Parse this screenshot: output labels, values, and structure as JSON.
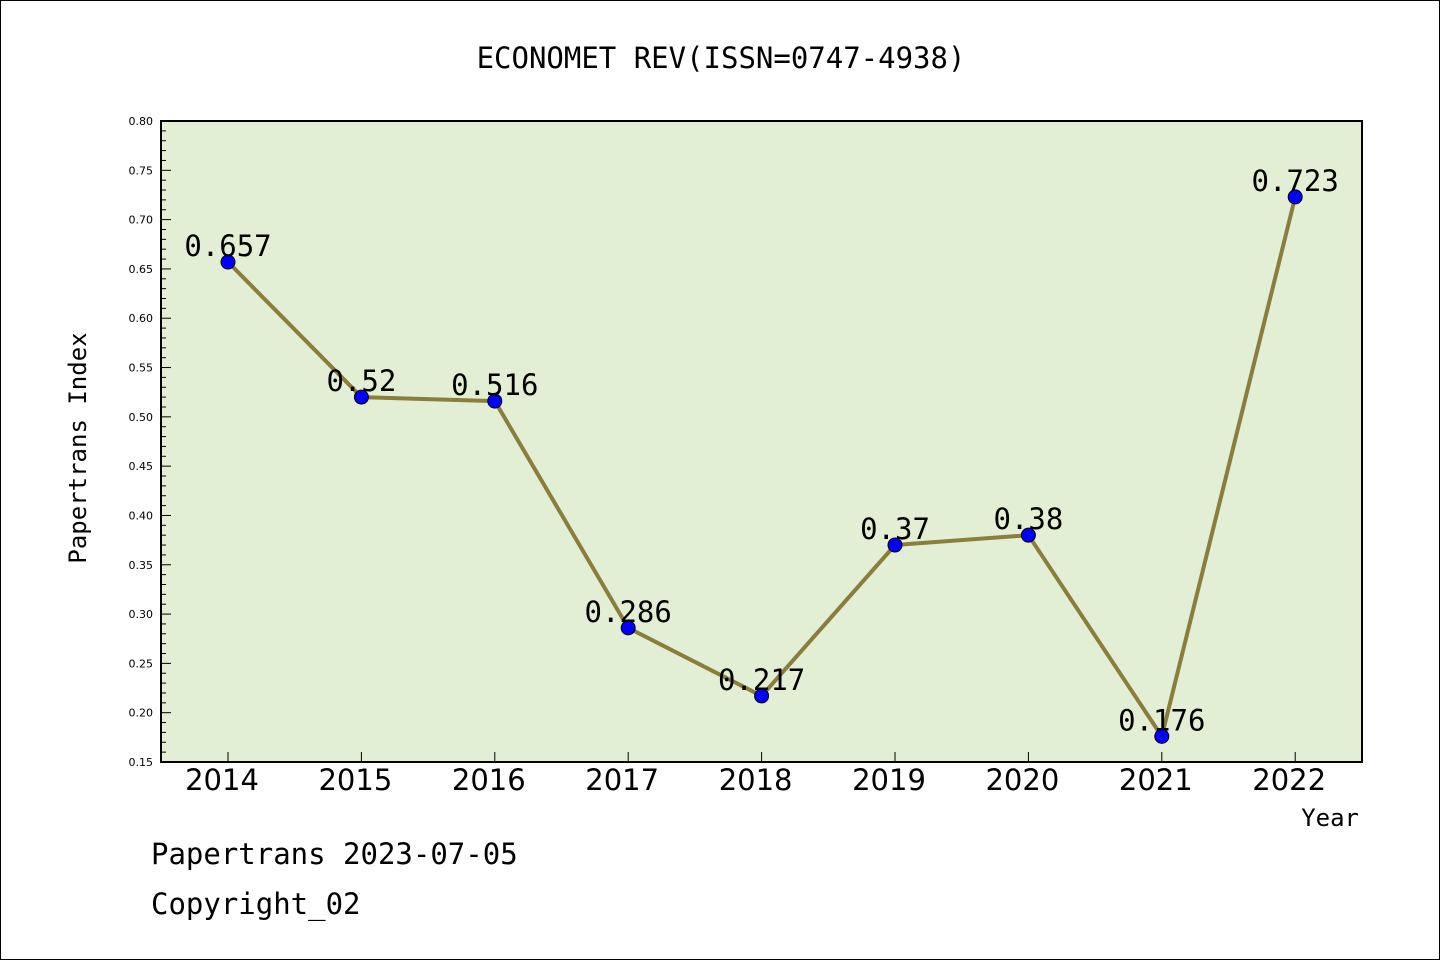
{
  "chart_data": {
    "type": "line",
    "title": "ECONOMET REV(ISSN=0747-4938)",
    "xlabel": "Year",
    "ylabel": "Papertrans Index",
    "x": [
      "2014",
      "2015",
      "2016",
      "2017",
      "2018",
      "2019",
      "2020",
      "2021",
      "2022"
    ],
    "series": [
      {
        "values": [
          0.657,
          0.52,
          0.516,
          0.286,
          0.217,
          0.37,
          0.38,
          0.176,
          0.723
        ],
        "labels": [
          "0.657",
          "0.52",
          "0.516",
          "0.286",
          "0.217",
          "0.37",
          "0.38",
          "0.176",
          "0.723"
        ],
        "line_color": "#8b7d3a",
        "marker_color": "#0000ff"
      }
    ],
    "ylim": [
      0.15,
      0.8
    ],
    "yticks": [
      "0.15",
      "0.20",
      "0.25",
      "0.30",
      "0.35",
      "0.40",
      "0.45",
      "0.50",
      "0.55",
      "0.60",
      "0.65",
      "0.70",
      "0.75",
      "0.80"
    ],
    "plot_background": "#e2efd5",
    "grid": false,
    "legend": "none"
  },
  "footer": {
    "line1": "Papertrans 2023-07-05",
    "line2": "Copyright_02"
  }
}
